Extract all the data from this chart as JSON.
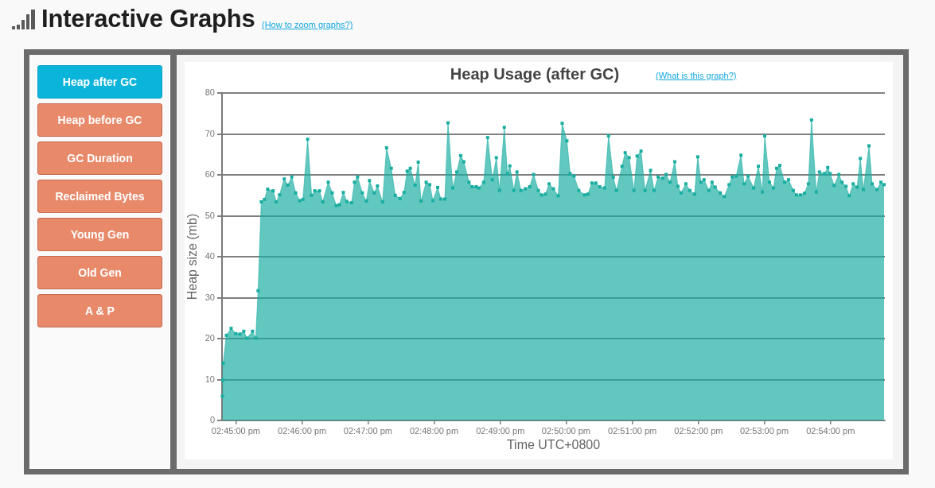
{
  "chart_data": [
    {
      "type": "other",
      "title": "Interactive Graphs",
      "annotations": [
        "(How to zoom graphs?)",
        "Heap after GC",
        "Heap before GC",
        "GC Duration",
        "Reclaimed Bytes",
        "Young Gen",
        "Old Gen",
        "A & P"
      ]
    },
    {
      "type": "area",
      "title": "Heap Usage (after GC)",
      "annotations": [
        "(What is this graph?)"
      ],
      "xlabel": "Time UTC+0800",
      "ylabel": "Heap size (mb)",
      "x": [
        14.7466,
        14.7467,
        14.7468,
        14.7476,
        14.7488,
        14.75,
        14.751,
        14.752,
        14.7528,
        14.7542,
        14.755,
        14.7556,
        14.7564,
        14.7572,
        14.758,
        14.7594,
        14.7602,
        14.761,
        14.7622,
        14.7631,
        14.7641,
        14.7651,
        14.7661,
        14.7669,
        14.7681,
        14.7691,
        14.7699,
        14.7711,
        14.7719,
        14.7733,
        14.7743,
        14.7753,
        14.7761,
        14.7771,
        14.778,
        14.7792,
        14.7799,
        14.7807,
        14.7819,
        14.7829,
        14.7837,
        14.7849,
        14.7857,
        14.787,
        14.788,
        14.7892,
        14.7902,
        14.7914,
        14.7924,
        14.7932,
        14.794,
        14.7952,
        14.796,
        14.7967,
        14.798,
        14.7989,
        14.7997,
        14.8009,
        14.8017,
        14.8027,
        14.8035,
        14.8047,
        14.8057,
        14.8067,
        14.8075,
        14.8088,
        14.8096,
        14.8106,
        14.8113,
        14.8125,
        14.8135,
        14.8147,
        14.8157,
        14.8165,
        14.8177,
        14.8185,
        14.8191,
        14.8201,
        14.8209,
        14.8219,
        14.823,
        14.8241,
        14.8251,
        14.8263,
        14.8271,
        14.8281,
        14.829,
        14.8301,
        14.8313,
        14.8323,
        14.8335,
        14.8343,
        14.8353,
        14.8365,
        14.838,
        14.8388,
        14.8398,
        14.8408,
        14.8418,
        14.843,
        14.844,
        14.8452,
        14.846,
        14.8474,
        14.8482,
        14.8492,
        14.8504,
        14.8512,
        14.8522,
        14.8532,
        14.8546,
        14.8555,
        14.8565,
        14.8577,
        14.8585,
        14.8595,
        14.8607,
        14.8615,
        14.8623,
        14.8635,
        14.8645,
        14.8657,
        14.8665,
        14.8673,
        14.8681,
        14.8693,
        14.8701,
        14.8709,
        14.8722,
        14.8732,
        14.8744,
        14.8752,
        14.8762,
        14.8774,
        14.8782,
        14.8792,
        14.8806,
        14.8818,
        14.8828,
        14.8834,
        14.8846,
        14.8856,
        14.8864,
        14.8872,
        14.8884,
        14.8894,
        14.8906,
        14.8914,
        14.8924,
        14.8934,
        14.8944,
        14.8952,
        14.8964,
        14.8972,
        14.8985,
        14.8993,
        14.8999,
        14.9009,
        14.9021,
        14.9029,
        14.9039,
        14.9047,
        14.9057,
        14.9067,
        14.9075,
        14.9083,
        14.9097,
        14.9105,
        14.9117,
        14.9127,
        14.9135
      ],
      "series": [
        {
          "color": "#17ada0",
          "values": [
            5.9,
            9.8,
            14.0,
            20.8,
            22.5,
            21.2,
            21.1,
            21.8,
            20.1,
            21.8,
            20.1,
            31.7,
            53.4,
            54.0,
            56.5,
            56.1,
            53.4,
            55.1,
            59.0,
            57.5,
            59.5,
            55.6,
            53.7,
            54.0,
            68.7,
            55.0,
            56.1,
            56.1,
            53.4,
            58.2,
            55.6,
            52.5,
            52.7,
            55.7,
            53.5,
            53.2,
            58.2,
            59.5,
            55.6,
            53.6,
            58.6,
            55.6,
            57.3,
            53.4,
            66.6,
            61.6,
            55.0,
            54.2,
            55.7,
            60.9,
            61.6,
            57.5,
            63.1,
            53.6,
            58.2,
            57.6,
            53.7,
            56.9,
            54.1,
            54.1,
            72.7,
            56.8,
            60.7,
            64.7,
            63.2,
            58.2,
            57.1,
            57.1,
            56.8,
            58.2,
            69.1,
            58.8,
            64.2,
            56.2,
            71.6,
            60.3,
            62.2,
            56.2,
            60.7,
            56.2,
            56.6,
            57.1,
            60.1,
            56.2,
            55.1,
            55.3,
            57.8,
            56.6,
            54.9,
            72.6,
            68.3,
            60.3,
            59.7,
            56.2,
            55.1,
            55.3,
            58.0,
            58.0,
            57.1,
            56.8,
            69.5,
            59.4,
            56.2,
            62.1,
            65.4,
            64.2,
            56.2,
            64.6,
            65.8,
            56.2,
            61.1,
            56.2,
            59.5,
            59.2,
            60.1,
            58.2,
            63.2,
            57.2,
            55.6,
            57.8,
            56.2,
            55.3,
            64.4,
            58.2,
            58.8,
            56.2,
            58.2,
            57.0,
            55.6,
            54.7,
            57.6,
            59.5,
            59.7,
            64.8,
            57.8,
            59.7,
            56.8,
            62.1,
            55.8,
            69.5,
            58.2,
            56.8,
            61.6,
            62.3,
            58.2,
            58.8,
            56.2,
            55.1,
            55.1,
            55.5,
            57.8,
            73.4,
            55.8,
            60.7,
            60.3,
            61.8,
            60.3,
            57.4,
            60.1,
            58.2,
            57.2,
            54.9,
            57.8,
            57.0,
            64.0,
            56.4,
            67.1,
            57.8,
            56.4,
            58.2,
            57.6
          ]
        }
      ],
      "xlim": [
        14.7465,
        14.9137
      ],
      "xticks": [
        {
          "value": 14.75,
          "label": "02:45:00 pm"
        },
        {
          "value": 14.7667,
          "label": "02:46:00 pm"
        },
        {
          "value": 14.7833,
          "label": "02:47:00 pm"
        },
        {
          "value": 14.8,
          "label": "02:48:00 pm"
        },
        {
          "value": 14.8167,
          "label": "02:49:00 pm"
        },
        {
          "value": 14.8333,
          "label": "02:50:00 pm"
        },
        {
          "value": 14.85,
          "label": "02:51:00 pm"
        },
        {
          "value": 14.8667,
          "label": "02:52:00 pm"
        },
        {
          "value": 14.8833,
          "label": "02:53:00 pm"
        },
        {
          "value": 14.9,
          "label": "02:54:00 pm"
        }
      ],
      "ylim": [
        0,
        80
      ],
      "yticks": [
        0,
        10,
        20,
        30,
        40,
        50,
        60,
        70,
        80
      ],
      "grid": "y",
      "marker": "square",
      "line_style": "solid"
    }
  ]
}
